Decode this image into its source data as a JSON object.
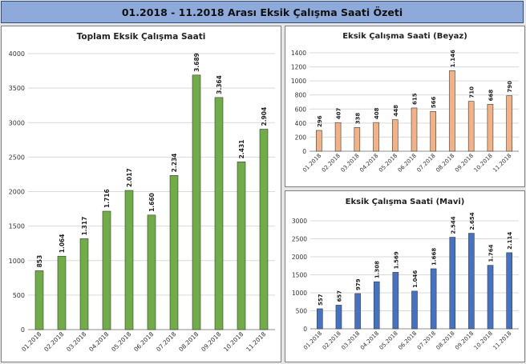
{
  "page": {
    "title": "01.2018 - 11.2018 Arası Eksik Çalışma Saati Özeti"
  },
  "chart_data": [
    {
      "type": "bar",
      "title": "Toplam Eksik Çalışma Saati",
      "categories": [
        "01.2018",
        "02.2018",
        "03.2018",
        "04.2018",
        "05.2018",
        "06.2018",
        "07.2018",
        "08.2018",
        "09.2018",
        "10.2018",
        "11.2018"
      ],
      "values": [
        853,
        1064,
        1317,
        1716,
        2017,
        1660,
        2234,
        3689,
        3364,
        2431,
        2904
      ],
      "labels": [
        "853",
        "1.064",
        "1.317",
        "1.716",
        "2.017",
        "1.660",
        "2.234",
        "3.689",
        "3.364",
        "2.431",
        "2.904"
      ],
      "yticks": [
        "0",
        "500",
        "1000",
        "1500",
        "2000",
        "2500",
        "3000",
        "3500",
        "4000"
      ],
      "ylim": [
        0,
        4000
      ],
      "grid": true,
      "color": "#70ad47"
    },
    {
      "type": "bar",
      "title": "Eksik Çalışma Saati (Beyaz)",
      "categories": [
        "01.2018",
        "02.2018",
        "03.2018",
        "04.2018",
        "05.2018",
        "06.2018",
        "07.2018",
        "08.2018",
        "09.2018",
        "10.2018",
        "11.2018"
      ],
      "values": [
        296,
        407,
        338,
        408,
        448,
        615,
        566,
        1146,
        710,
        668,
        790
      ],
      "labels": [
        "296",
        "407",
        "338",
        "408",
        "448",
        "615",
        "566",
        "1.146",
        "710",
        "668",
        "790"
      ],
      "yticks": [
        "0",
        "200",
        "400",
        "600",
        "800",
        "1000",
        "1200",
        "1400"
      ],
      "ylim": [
        0,
        1400
      ],
      "grid": true,
      "color": "#f4b183"
    },
    {
      "type": "bar",
      "title": "Eksik Çalışma Saati (Mavi)",
      "categories": [
        "01.2018",
        "02.2018",
        "03.2018",
        "04.2018",
        "05.2018",
        "06.2018",
        "07.2018",
        "08.2018",
        "09.2018",
        "10.2018",
        "11.2018"
      ],
      "values": [
        557,
        657,
        979,
        1308,
        1569,
        1046,
        1668,
        2544,
        2654,
        1764,
        2114
      ],
      "labels": [
        "557",
        "657",
        "979",
        "1.308",
        "1.569",
        "1.046",
        "1.668",
        "2.544",
        "2.654",
        "1.764",
        "2.114"
      ],
      "yticks": [
        "0",
        "500",
        "1000",
        "1500",
        "2000",
        "2500",
        "3000"
      ],
      "ylim": [
        0,
        3000
      ],
      "grid": true,
      "color": "#4472c4"
    }
  ]
}
